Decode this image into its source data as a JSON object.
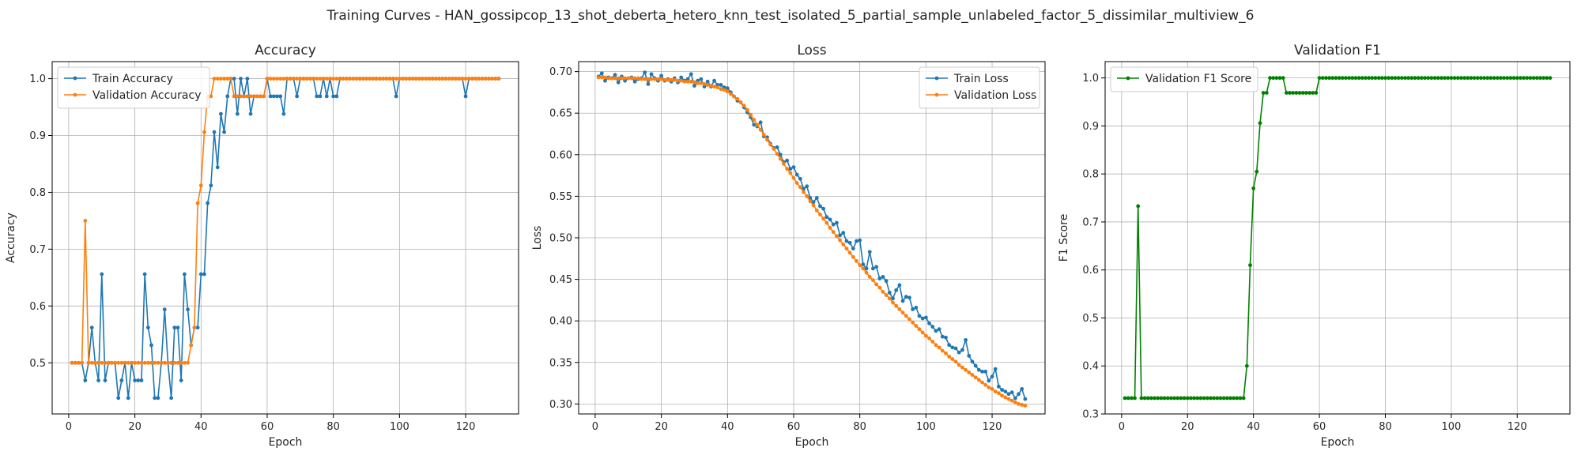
{
  "title": "Training Curves - HAN_gossipcop_13_shot_deberta_hetero_knn_test_isolated_5_partial_sample_unlabeled_factor_5_dissimilar_multiview_6",
  "colors": {
    "train": "#1f77b4",
    "val": "#ff7f0e",
    "f1": "#008000",
    "grid": "#b0b0b0"
  },
  "chart_data": [
    {
      "type": "line",
      "title": "Accuracy",
      "xlabel": "Epoch",
      "ylabel": "Accuracy",
      "xlim": [
        -5,
        136
      ],
      "ylim": [
        0.41,
        1.03
      ],
      "xticks": [
        0,
        20,
        40,
        60,
        80,
        100,
        120
      ],
      "yticks": [
        0.5,
        0.6,
        0.7,
        0.8,
        0.9,
        1.0
      ],
      "ytick_labels": [
        "0.5",
        "0.6",
        "0.7",
        "0.8",
        "0.9",
        "1.0"
      ],
      "grid": true,
      "legend_position": "top-left",
      "x": [
        1,
        2,
        3,
        4,
        5,
        6,
        7,
        8,
        9,
        10,
        11,
        12,
        13,
        14,
        15,
        16,
        17,
        18,
        19,
        20,
        21,
        22,
        23,
        24,
        25,
        26,
        27,
        28,
        29,
        30,
        31,
        32,
        33,
        34,
        35,
        36,
        37,
        38,
        39,
        40,
        41,
        42,
        43,
        44,
        45,
        46,
        47,
        48,
        49,
        50,
        51,
        52,
        53,
        54,
        55,
        56,
        57,
        58,
        59,
        60,
        61,
        62,
        63,
        64,
        65,
        66,
        67,
        68,
        69,
        70,
        71,
        72,
        73,
        74,
        75,
        76,
        77,
        78,
        79,
        80,
        81,
        82,
        83,
        84,
        85,
        86,
        87,
        88,
        89,
        90,
        91,
        92,
        93,
        94,
        95,
        96,
        97,
        98,
        99,
        100,
        101,
        102,
        103,
        104,
        105,
        106,
        107,
        108,
        109,
        110,
        111,
        112,
        113,
        114,
        115,
        116,
        117,
        118,
        119,
        120,
        121,
        122,
        123,
        124,
        125,
        126,
        127,
        128,
        129,
        130
      ],
      "series": [
        {
          "name": "Train Accuracy",
          "color": "#1f77b4",
          "values": [
            0.5,
            0.5,
            0.5,
            0.5,
            0.469,
            0.5,
            0.562,
            0.5,
            0.469,
            0.656,
            0.469,
            0.5,
            0.5,
            0.5,
            0.438,
            0.469,
            0.5,
            0.438,
            0.5,
            0.469,
            0.469,
            0.469,
            0.656,
            0.562,
            0.531,
            0.438,
            0.438,
            0.5,
            0.594,
            0.5,
            0.438,
            0.562,
            0.562,
            0.469,
            0.656,
            0.594,
            0.531,
            0.562,
            0.562,
            0.656,
            0.656,
            0.781,
            0.812,
            0.906,
            0.844,
            0.938,
            0.906,
            0.969,
            1.0,
            1.0,
            0.938,
            1.0,
            0.969,
            1.0,
            0.938,
            0.969,
            0.969,
            0.969,
            0.969,
            1.0,
            0.969,
            0.969,
            0.969,
            0.969,
            0.938,
            1.0,
            1.0,
            1.0,
            0.969,
            1.0,
            1.0,
            1.0,
            1.0,
            1.0,
            0.969,
            0.969,
            1.0,
            0.969,
            1.0,
            0.969,
            0.969,
            1.0,
            1.0,
            1.0,
            1.0,
            1.0,
            1.0,
            1.0,
            1.0,
            1.0,
            1.0,
            1.0,
            1.0,
            1.0,
            1.0,
            1.0,
            1.0,
            1.0,
            0.969,
            1.0,
            1.0,
            1.0,
            1.0,
            1.0,
            1.0,
            1.0,
            1.0,
            1.0,
            1.0,
            1.0,
            1.0,
            1.0,
            1.0,
            1.0,
            1.0,
            1.0,
            1.0,
            1.0,
            1.0,
            0.969,
            1.0,
            1.0,
            1.0,
            1.0,
            1.0,
            1.0,
            1.0,
            1.0,
            1.0,
            1.0
          ]
        },
        {
          "name": "Validation Accuracy",
          "color": "#ff7f0e",
          "values": [
            0.5,
            0.5,
            0.5,
            0.5,
            0.75,
            0.5,
            0.5,
            0.5,
            0.5,
            0.5,
            0.5,
            0.5,
            0.5,
            0.5,
            0.5,
            0.5,
            0.5,
            0.5,
            0.5,
            0.5,
            0.5,
            0.5,
            0.5,
            0.5,
            0.5,
            0.5,
            0.5,
            0.5,
            0.5,
            0.5,
            0.5,
            0.5,
            0.5,
            0.5,
            0.5,
            0.5,
            0.531,
            0.562,
            0.781,
            0.812,
            0.906,
            0.969,
            0.969,
            1.0,
            1.0,
            1.0,
            1.0,
            1.0,
            1.0,
            0.969,
            0.969,
            0.969,
            0.969,
            0.969,
            0.969,
            0.969,
            0.969,
            0.969,
            0.969,
            1.0,
            1.0,
            1.0,
            1.0,
            1.0,
            1.0,
            1.0,
            1.0,
            1.0,
            1.0,
            1.0,
            1.0,
            1.0,
            1.0,
            1.0,
            1.0,
            1.0,
            1.0,
            1.0,
            1.0,
            1.0,
            1.0,
            1.0,
            1.0,
            1.0,
            1.0,
            1.0,
            1.0,
            1.0,
            1.0,
            1.0,
            1.0,
            1.0,
            1.0,
            1.0,
            1.0,
            1.0,
            1.0,
            1.0,
            1.0,
            1.0,
            1.0,
            1.0,
            1.0,
            1.0,
            1.0,
            1.0,
            1.0,
            1.0,
            1.0,
            1.0,
            1.0,
            1.0,
            1.0,
            1.0,
            1.0,
            1.0,
            1.0,
            1.0,
            1.0,
            1.0,
            1.0,
            1.0,
            1.0,
            1.0,
            1.0,
            1.0,
            1.0,
            1.0,
            1.0,
            1.0
          ]
        }
      ]
    },
    {
      "type": "line",
      "title": "Loss",
      "xlabel": "Epoch",
      "ylabel": "Loss",
      "xlim": [
        -5,
        136
      ],
      "ylim": [
        0.288,
        0.712
      ],
      "xticks": [
        0,
        20,
        40,
        60,
        80,
        100,
        120
      ],
      "yticks": [
        0.3,
        0.35,
        0.4,
        0.45,
        0.5,
        0.55,
        0.6,
        0.65,
        0.7
      ],
      "ytick_labels": [
        "0.30",
        "0.35",
        "0.40",
        "0.45",
        "0.50",
        "0.55",
        "0.60",
        "0.65",
        "0.70"
      ],
      "grid": true,
      "legend_position": "top-right",
      "x": [
        1,
        2,
        3,
        4,
        5,
        6,
        7,
        8,
        9,
        10,
        11,
        12,
        13,
        14,
        15,
        16,
        17,
        18,
        19,
        20,
        21,
        22,
        23,
        24,
        25,
        26,
        27,
        28,
        29,
        30,
        31,
        32,
        33,
        34,
        35,
        36,
        37,
        38,
        39,
        40,
        41,
        42,
        43,
        44,
        45,
        46,
        47,
        48,
        49,
        50,
        51,
        52,
        53,
        54,
        55,
        56,
        57,
        58,
        59,
        60,
        61,
        62,
        63,
        64,
        65,
        66,
        67,
        68,
        69,
        70,
        71,
        72,
        73,
        74,
        75,
        76,
        77,
        78,
        79,
        80,
        81,
        82,
        83,
        84,
        85,
        86,
        87,
        88,
        89,
        90,
        91,
        92,
        93,
        94,
        95,
        96,
        97,
        98,
        99,
        100,
        101,
        102,
        103,
        104,
        105,
        106,
        107,
        108,
        109,
        110,
        111,
        112,
        113,
        114,
        115,
        116,
        117,
        118,
        119,
        120,
        121,
        122,
        123,
        124,
        125,
        126,
        127,
        128,
        129,
        130
      ],
      "series": [
        {
          "name": "Train Loss",
          "color": "#1f77b4",
          "values": [
            0.694,
            0.698,
            0.689,
            0.693,
            0.692,
            0.696,
            0.687,
            0.694,
            0.689,
            0.692,
            0.693,
            0.688,
            0.691,
            0.692,
            0.699,
            0.685,
            0.697,
            0.692,
            0.689,
            0.695,
            0.689,
            0.691,
            0.688,
            0.692,
            0.687,
            0.693,
            0.689,
            0.691,
            0.697,
            0.683,
            0.689,
            0.691,
            0.682,
            0.688,
            0.682,
            0.689,
            0.684,
            0.684,
            0.681,
            0.68,
            0.675,
            0.67,
            0.665,
            0.663,
            0.657,
            0.651,
            0.645,
            0.636,
            0.634,
            0.639,
            0.622,
            0.621,
            0.613,
            0.608,
            0.609,
            0.6,
            0.591,
            0.593,
            0.583,
            0.585,
            0.576,
            0.571,
            0.559,
            0.562,
            0.548,
            0.543,
            0.548,
            0.538,
            0.535,
            0.525,
            0.522,
            0.516,
            0.518,
            0.503,
            0.506,
            0.496,
            0.494,
            0.487,
            0.496,
            0.497,
            0.468,
            0.463,
            0.483,
            0.463,
            0.465,
            0.451,
            0.453,
            0.448,
            0.434,
            0.427,
            0.437,
            0.443,
            0.424,
            0.429,
            0.428,
            0.414,
            0.416,
            0.406,
            0.403,
            0.404,
            0.397,
            0.393,
            0.388,
            0.39,
            0.381,
            0.38,
            0.371,
            0.368,
            0.367,
            0.362,
            0.365,
            0.377,
            0.358,
            0.351,
            0.346,
            0.341,
            0.339,
            0.339,
            0.328,
            0.333,
            0.342,
            0.321,
            0.317,
            0.315,
            0.312,
            0.314,
            0.307,
            0.312,
            0.318,
            0.306
          ]
        },
        {
          "name": "Validation Loss",
          "color": "#ff7f0e",
          "values": [
            0.693,
            0.693,
            0.693,
            0.692,
            0.692,
            0.692,
            0.692,
            0.692,
            0.692,
            0.692,
            0.692,
            0.692,
            0.692,
            0.691,
            0.691,
            0.691,
            0.691,
            0.691,
            0.691,
            0.691,
            0.69,
            0.69,
            0.69,
            0.69,
            0.689,
            0.689,
            0.688,
            0.688,
            0.688,
            0.687,
            0.686,
            0.686,
            0.685,
            0.684,
            0.683,
            0.682,
            0.681,
            0.679,
            0.678,
            0.676,
            0.673,
            0.67,
            0.667,
            0.663,
            0.659,
            0.654,
            0.648,
            0.642,
            0.636,
            0.63,
            0.624,
            0.618,
            0.612,
            0.607,
            0.601,
            0.595,
            0.589,
            0.583,
            0.578,
            0.572,
            0.566,
            0.561,
            0.555,
            0.55,
            0.544,
            0.539,
            0.533,
            0.528,
            0.523,
            0.518,
            0.512,
            0.507,
            0.502,
            0.497,
            0.492,
            0.487,
            0.482,
            0.477,
            0.472,
            0.467,
            0.463,
            0.458,
            0.453,
            0.449,
            0.444,
            0.44,
            0.435,
            0.431,
            0.427,
            0.422,
            0.418,
            0.414,
            0.41,
            0.406,
            0.402,
            0.398,
            0.394,
            0.39,
            0.386,
            0.382,
            0.379,
            0.375,
            0.371,
            0.368,
            0.364,
            0.361,
            0.357,
            0.354,
            0.351,
            0.347,
            0.344,
            0.341,
            0.338,
            0.335,
            0.332,
            0.329,
            0.326,
            0.323,
            0.32,
            0.318,
            0.315,
            0.313,
            0.31,
            0.308,
            0.306,
            0.304,
            0.302,
            0.3,
            0.299,
            0.298
          ]
        }
      ]
    },
    {
      "type": "line",
      "title": "Validation F1",
      "xlabel": "Epoch",
      "ylabel": "F1 Score",
      "xlim": [
        -5,
        136
      ],
      "ylim": [
        0.3,
        1.034
      ],
      "xticks": [
        0,
        20,
        40,
        60,
        80,
        100,
        120
      ],
      "yticks": [
        0.3,
        0.4,
        0.5,
        0.6,
        0.7,
        0.8,
        0.9,
        1.0
      ],
      "ytick_labels": [
        "0.3",
        "0.4",
        "0.5",
        "0.6",
        "0.7",
        "0.8",
        "0.9",
        "1.0"
      ],
      "grid": true,
      "legend_position": "top-left",
      "x": [
        1,
        2,
        3,
        4,
        5,
        6,
        7,
        8,
        9,
        10,
        11,
        12,
        13,
        14,
        15,
        16,
        17,
        18,
        19,
        20,
        21,
        22,
        23,
        24,
        25,
        26,
        27,
        28,
        29,
        30,
        31,
        32,
        33,
        34,
        35,
        36,
        37,
        38,
        39,
        40,
        41,
        42,
        43,
        44,
        45,
        46,
        47,
        48,
        49,
        50,
        51,
        52,
        53,
        54,
        55,
        56,
        57,
        58,
        59,
        60,
        61,
        62,
        63,
        64,
        65,
        66,
        67,
        68,
        69,
        70,
        71,
        72,
        73,
        74,
        75,
        76,
        77,
        78,
        79,
        80,
        81,
        82,
        83,
        84,
        85,
        86,
        87,
        88,
        89,
        90,
        91,
        92,
        93,
        94,
        95,
        96,
        97,
        98,
        99,
        100,
        101,
        102,
        103,
        104,
        105,
        106,
        107,
        108,
        109,
        110,
        111,
        112,
        113,
        114,
        115,
        116,
        117,
        118,
        119,
        120,
        121,
        122,
        123,
        124,
        125,
        126,
        127,
        128,
        129,
        130
      ],
      "series": [
        {
          "name": "Validation F1 Score",
          "color": "#008000",
          "values": [
            0.333,
            0.333,
            0.333,
            0.333,
            0.733,
            0.333,
            0.333,
            0.333,
            0.333,
            0.333,
            0.333,
            0.333,
            0.333,
            0.333,
            0.333,
            0.333,
            0.333,
            0.333,
            0.333,
            0.333,
            0.333,
            0.333,
            0.333,
            0.333,
            0.333,
            0.333,
            0.333,
            0.333,
            0.333,
            0.333,
            0.333,
            0.333,
            0.333,
            0.333,
            0.333,
            0.333,
            0.333,
            0.4,
            0.61,
            0.77,
            0.805,
            0.906,
            0.969,
            0.969,
            1.0,
            1.0,
            1.0,
            1.0,
            1.0,
            0.969,
            0.969,
            0.969,
            0.969,
            0.969,
            0.969,
            0.969,
            0.969,
            0.969,
            0.969,
            1.0,
            1.0,
            1.0,
            1.0,
            1.0,
            1.0,
            1.0,
            1.0,
            1.0,
            1.0,
            1.0,
            1.0,
            1.0,
            1.0,
            1.0,
            1.0,
            1.0,
            1.0,
            1.0,
            1.0,
            1.0,
            1.0,
            1.0,
            1.0,
            1.0,
            1.0,
            1.0,
            1.0,
            1.0,
            1.0,
            1.0,
            1.0,
            1.0,
            1.0,
            1.0,
            1.0,
            1.0,
            1.0,
            1.0,
            1.0,
            1.0,
            1.0,
            1.0,
            1.0,
            1.0,
            1.0,
            1.0,
            1.0,
            1.0,
            1.0,
            1.0,
            1.0,
            1.0,
            1.0,
            1.0,
            1.0,
            1.0,
            1.0,
            1.0,
            1.0,
            1.0,
            1.0,
            1.0,
            1.0,
            1.0,
            1.0,
            1.0,
            1.0,
            1.0,
            1.0,
            1.0
          ]
        }
      ]
    }
  ]
}
